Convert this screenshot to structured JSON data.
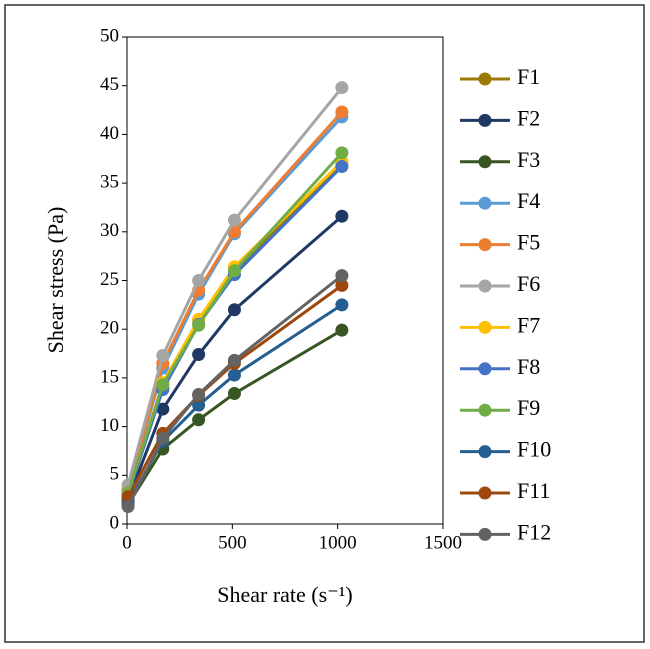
{
  "chart_data": {
    "type": "line",
    "x_label": "Shear rate (s⁻¹)",
    "y_label": "Shear stress (Pa)",
    "x": [
      5,
      170,
      340,
      510,
      1020
    ],
    "xlim": [
      0,
      1500
    ],
    "xticks": [
      0,
      500,
      1000,
      1500
    ],
    "ylim": [
      0,
      50
    ],
    "yticks": [
      0,
      5,
      10,
      15,
      20,
      25,
      30,
      35,
      40,
      45,
      50
    ],
    "grid": false,
    "legend": "right",
    "series": [
      {
        "name": "F1",
        "color": "#9c7a00",
        "values": [
          3,
          14,
          21,
          26,
          37
        ]
      },
      {
        "name": "F2",
        "color": "#1f3864",
        "values": [
          2.5,
          11.8,
          17.4,
          22,
          31.6
        ]
      },
      {
        "name": "F3",
        "color": "#375623",
        "values": [
          2,
          7.7,
          10.7,
          13.4,
          19.9
        ]
      },
      {
        "name": "F4",
        "color": "#5b9bd5",
        "values": [
          3.5,
          16,
          23.6,
          29.8,
          41.8
        ]
      },
      {
        "name": "F5",
        "color": "#ed7d31",
        "values": [
          3.5,
          16.5,
          24,
          30,
          42.3
        ]
      },
      {
        "name": "F6",
        "color": "#a5a5a5",
        "values": [
          4,
          17.3,
          25,
          31.2,
          44.8
        ]
      },
      {
        "name": "F7",
        "color": "#ffc000",
        "values": [
          3,
          14.5,
          21,
          26.4,
          37.2
        ]
      },
      {
        "name": "F8",
        "color": "#4472c4",
        "values": [
          3,
          13.8,
          20.5,
          25.6,
          36.7
        ]
      },
      {
        "name": "F9",
        "color": "#70ad47",
        "values": [
          3.2,
          14.3,
          20.4,
          26,
          38.1
        ]
      },
      {
        "name": "F10",
        "color": "#255e91",
        "values": [
          2.2,
          8.5,
          12.2,
          15.3,
          22.5
        ]
      },
      {
        "name": "F11",
        "color": "#9e480e",
        "values": [
          2.8,
          9.3,
          13.2,
          16.5,
          24.5
        ]
      },
      {
        "name": "F12",
        "color": "#636363",
        "values": [
          1.8,
          8.8,
          13.3,
          16.8,
          25.5
        ]
      }
    ]
  }
}
